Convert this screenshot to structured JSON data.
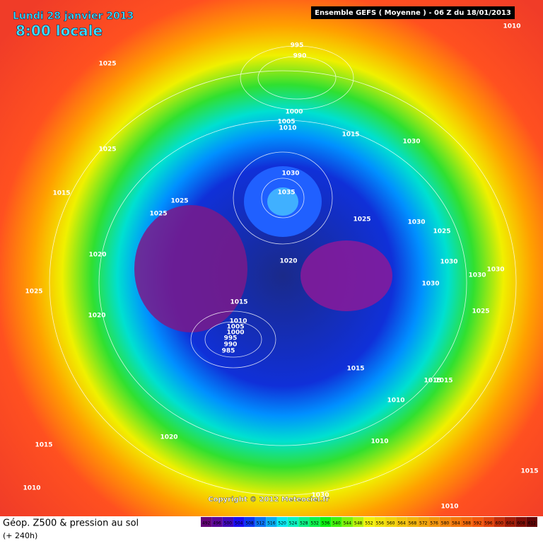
{
  "header": {
    "date": "Lundi 28 janvier 2013",
    "time": "8:00 locale",
    "model": "Ensemble GEFS ( Moyenne )  -  06 Z du 18/01/2013"
  },
  "isobars": [
    1010,
    995,
    990,
    1025,
    1000,
    1005,
    1010,
    1015,
    1030,
    1025,
    1030,
    1035,
    1015,
    1025,
    1025,
    1025,
    1030,
    1025,
    1020,
    1030,
    1020,
    1030,
    1030,
    1030,
    1025,
    1015,
    1025,
    1020,
    1010,
    1005,
    1000,
    995,
    990,
    985,
    1015,
    1015,
    1015,
    1010,
    1010,
    1020,
    1015,
    1015,
    1010,
    1030,
    1010
  ],
  "copyright": "Copyright © 2012 Meteociel.fr",
  "footer": {
    "title": "Géop. Z500 & pression au sol",
    "subtitle": "(+ 240h)"
  },
  "legend": {
    "labels": [
      492,
      496,
      500,
      504,
      508,
      512,
      516,
      520,
      524,
      528,
      532,
      536,
      540,
      544,
      548,
      552,
      556,
      560,
      564,
      568,
      572,
      576,
      580,
      584,
      588,
      592,
      596,
      600,
      604,
      608,
      612
    ]
  }
}
